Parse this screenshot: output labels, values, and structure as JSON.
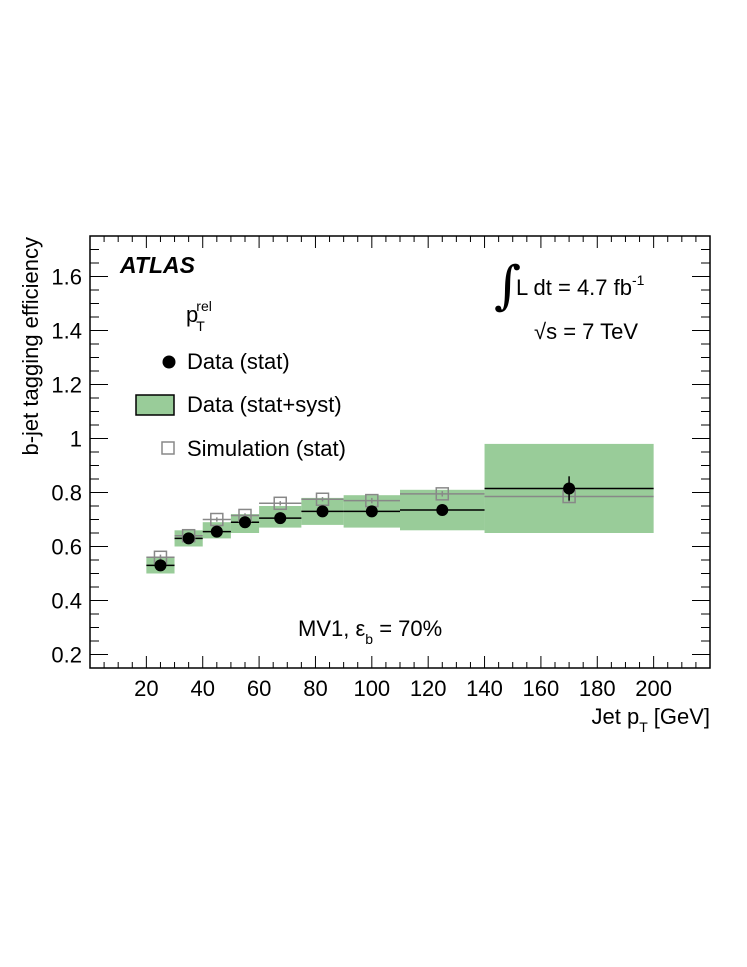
{
  "chart_data": {
    "type": "scatter",
    "xlabel": "Jet p",
    "xlabel_sub": "T",
    "xlabel_unit": "[GeV]",
    "ylabel": "b-jet tagging efficiency",
    "xlim": [
      0,
      220
    ],
    "ylim": [
      0.15,
      1.75
    ],
    "x_ticks": [
      20,
      40,
      60,
      80,
      100,
      120,
      140,
      160,
      180,
      200
    ],
    "y_ticks": [
      0.2,
      0.4,
      0.6,
      0.8,
      1,
      1.2,
      1.4,
      1.6
    ],
    "y_tick_labels": [
      "0.2",
      "0.4",
      "0.6",
      "0.8",
      "1",
      "1.2",
      "1.4",
      "1.6"
    ],
    "legend_placement": "top-left",
    "bins": [
      {
        "xlo": 20,
        "xhi": 30,
        "data": 0.53,
        "data_stat_err": 0.015,
        "syst_lo": 0.5,
        "syst_hi": 0.56,
        "sim": 0.56,
        "sim_err": 0.01
      },
      {
        "xlo": 30,
        "xhi": 40,
        "data": 0.63,
        "data_stat_err": 0.012,
        "syst_lo": 0.6,
        "syst_hi": 0.66,
        "sim": 0.64,
        "sim_err": 0.008
      },
      {
        "xlo": 40,
        "xhi": 50,
        "data": 0.655,
        "data_stat_err": 0.012,
        "syst_lo": 0.63,
        "syst_hi": 0.69,
        "sim": 0.7,
        "sim_err": 0.008
      },
      {
        "xlo": 50,
        "xhi": 60,
        "data": 0.69,
        "data_stat_err": 0.012,
        "syst_lo": 0.65,
        "syst_hi": 0.72,
        "sim": 0.715,
        "sim_err": 0.008
      },
      {
        "xlo": 60,
        "xhi": 75,
        "data": 0.705,
        "data_stat_err": 0.012,
        "syst_lo": 0.67,
        "syst_hi": 0.75,
        "sim": 0.76,
        "sim_err": 0.008
      },
      {
        "xlo": 75,
        "xhi": 90,
        "data": 0.73,
        "data_stat_err": 0.012,
        "syst_lo": 0.68,
        "syst_hi": 0.78,
        "sim": 0.775,
        "sim_err": 0.008
      },
      {
        "xlo": 90,
        "xhi": 110,
        "data": 0.73,
        "data_stat_err": 0.02,
        "syst_lo": 0.67,
        "syst_hi": 0.79,
        "sim": 0.77,
        "sim_err": 0.01
      },
      {
        "xlo": 110,
        "xhi": 140,
        "data": 0.735,
        "data_stat_err": 0.015,
        "syst_lo": 0.66,
        "syst_hi": 0.81,
        "sim": 0.795,
        "sim_err": 0.01
      },
      {
        "xlo": 140,
        "xhi": 200,
        "data": 0.815,
        "data_stat_err": 0.045,
        "syst_lo": 0.65,
        "syst_hi": 0.98,
        "sim": 0.785,
        "sim_err": 0.02
      }
    ],
    "data_x": [
      25,
      35,
      45,
      55,
      67.5,
      82.5,
      100,
      125,
      170
    ],
    "colors": {
      "band": "#99cc99",
      "data": "#000000",
      "sim": "#888888"
    },
    "legend": {
      "header": "p",
      "header_sub": "T",
      "header_sup": "rel",
      "data_stat": "Data (stat)",
      "data_syst": "Data (stat+syst)",
      "simulation": "Simulation (stat)"
    },
    "annotations": {
      "experiment": "ATLAS",
      "lumi_prefix": "L dt = 4.7 fb",
      "lumi_sup": "-1",
      "energy_root": "√",
      "energy": "s = 7 TeV",
      "tagger": "MV1, ε",
      "tagger_sub": "b",
      "tagger_value": " = 70%"
    }
  }
}
